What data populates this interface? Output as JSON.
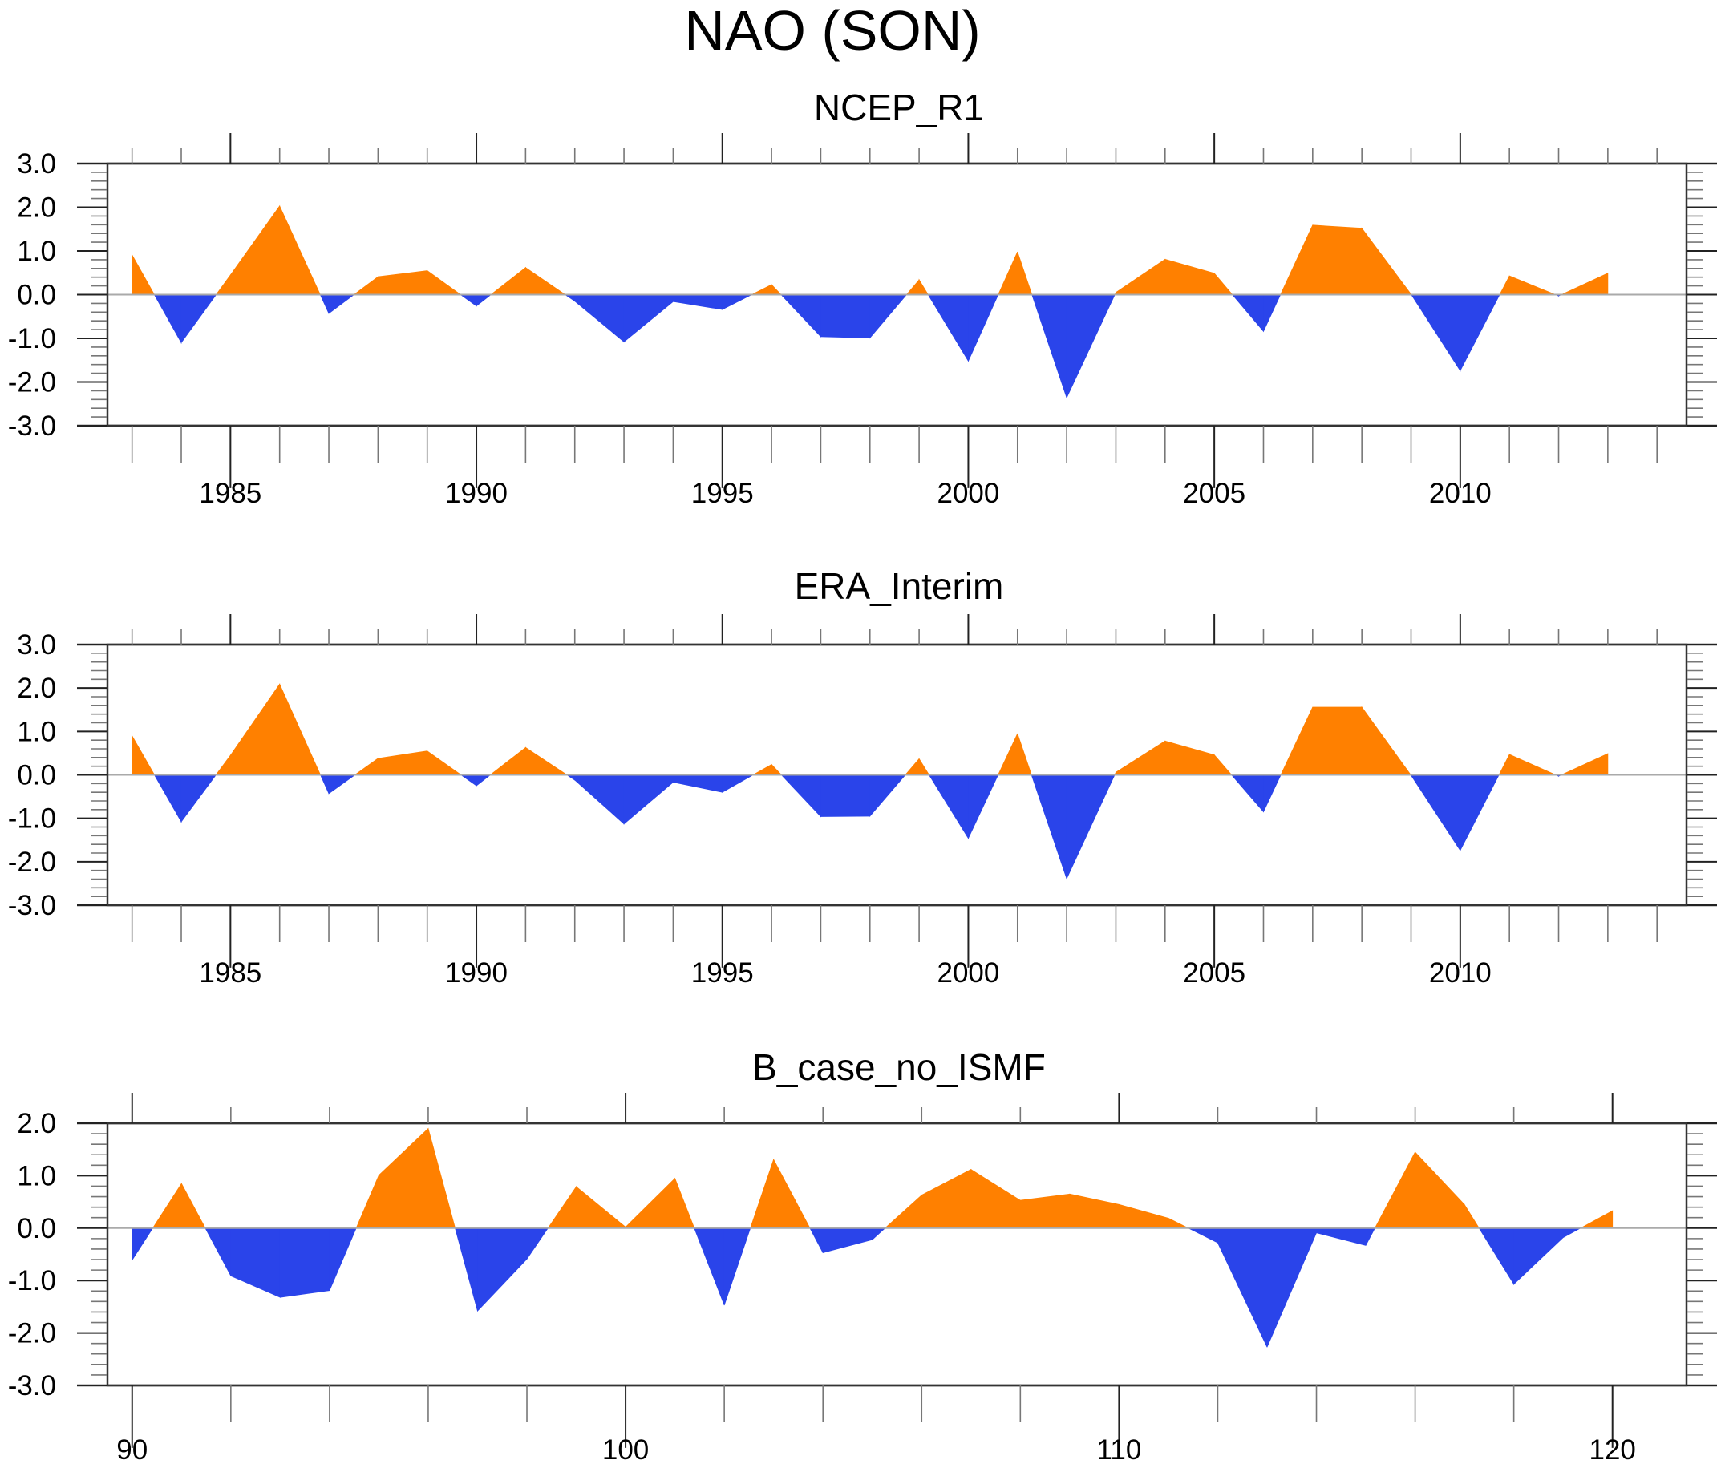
{
  "figure": {
    "title": "NAO (SON)",
    "colors": {
      "positive": "#ff8000",
      "negative": "#2a44ea",
      "zero_line": "#aaaaaa"
    }
  },
  "chart_data": [
    {
      "type": "area",
      "title": "NCEP_R1",
      "xlabel": "",
      "ylabel": "",
      "xlim": [
        1982.5,
        2014.6
      ],
      "ylim": [
        -3.0,
        3.0
      ],
      "x_major_ticks": [
        1985,
        1990,
        1995,
        2000,
        2005,
        2010
      ],
      "x_tick_labels": [
        "1985",
        "1990",
        "1995",
        "2000",
        "2005",
        "2010"
      ],
      "x_minor_step": 1,
      "y_ticks": [
        3.0,
        2.0,
        1.0,
        0.0,
        -1.0,
        -2.0,
        -3.0
      ],
      "y_tick_labels": [
        "3.0",
        "2.0",
        "1.0",
        "0.0",
        "-1.0",
        "-2.0",
        "-3.0"
      ],
      "y_minor_step": 0.2,
      "grid": false,
      "x": [
        1983,
        1984,
        1985,
        1986,
        1987,
        1988,
        1989,
        1990,
        1991,
        1992,
        1993,
        1994,
        1995,
        1996,
        1997,
        1998,
        1999,
        2000,
        2001,
        2002,
        2003,
        2004,
        2005,
        2006,
        2007,
        2008,
        2009,
        2010,
        2011,
        2012,
        2013
      ],
      "values": [
        0.91,
        -1.1,
        0.45,
        2.03,
        -0.43,
        0.41,
        0.55,
        -0.26,
        0.62,
        -0.15,
        -1.08,
        -0.16,
        -0.34,
        0.23,
        -0.96,
        -0.99,
        0.34,
        -1.52,
        0.98,
        -2.36,
        0.05,
        0.81,
        0.49,
        -0.84,
        1.59,
        1.52,
        0.01,
        -1.74,
        0.43,
        -0.03,
        0.49
      ]
    },
    {
      "type": "area",
      "title": "ERA_Interim",
      "xlabel": "",
      "ylabel": "",
      "xlim": [
        1982.5,
        2014.6
      ],
      "ylim": [
        -3.0,
        3.0
      ],
      "x_major_ticks": [
        1985,
        1990,
        1995,
        2000,
        2005,
        2010
      ],
      "x_tick_labels": [
        "1985",
        "1990",
        "1995",
        "2000",
        "2005",
        "2010"
      ],
      "x_minor_step": 1,
      "y_ticks": [
        3.0,
        2.0,
        1.0,
        0.0,
        -1.0,
        -2.0,
        -3.0
      ],
      "y_tick_labels": [
        "3.0",
        "2.0",
        "1.0",
        "0.0",
        "-1.0",
        "-2.0",
        "-3.0"
      ],
      "y_minor_step": 0.2,
      "grid": false,
      "x": [
        1983,
        1984,
        1985,
        1986,
        1987,
        1988,
        1989,
        1990,
        1991,
        1992,
        1993,
        1994,
        1995,
        1996,
        1997,
        1998,
        1999,
        2000,
        2001,
        2002,
        2003,
        2004,
        2005,
        2006,
        2007,
        2008,
        2009,
        2010,
        2011,
        2012,
        2013
      ],
      "values": [
        0.9,
        -1.08,
        0.45,
        2.09,
        -0.43,
        0.38,
        0.55,
        -0.25,
        0.63,
        -0.12,
        -1.13,
        -0.17,
        -0.4,
        0.24,
        -0.96,
        -0.95,
        0.37,
        -1.46,
        0.95,
        -2.39,
        0.06,
        0.78,
        0.46,
        -0.85,
        1.56,
        1.56,
        -0.01,
        -1.74,
        0.47,
        -0.03,
        0.49
      ]
    },
    {
      "type": "area",
      "title": "B_case_no_ISMF",
      "xlabel": "",
      "ylabel": "",
      "xlim": [
        89.5,
        121.5
      ],
      "ylim": [
        -3.0,
        2.0
      ],
      "x_major_ticks": [
        90,
        100,
        110,
        120
      ],
      "x_tick_labels": [
        "90",
        "100",
        "110",
        "120"
      ],
      "x_minor_step": 2,
      "y_ticks": [
        2.0,
        1.0,
        0.0,
        -1.0,
        -2.0,
        -3.0
      ],
      "y_tick_labels": [
        "2.0",
        "1.0",
        "0.0",
        "-1.0",
        "-2.0",
        "-3.0"
      ],
      "y_minor_step": 0.2,
      "grid": false,
      "x": [
        90,
        91,
        92,
        93,
        94,
        95,
        96,
        97,
        98,
        99,
        100,
        101,
        102,
        103,
        104,
        105,
        106,
        107,
        108,
        109,
        110,
        111,
        112,
        113,
        114,
        115,
        116,
        117,
        118,
        119,
        120
      ],
      "values": [
        -0.61,
        0.85,
        -0.91,
        -1.32,
        -1.19,
        1.01,
        1.9,
        -1.58,
        -0.59,
        0.79,
        0.02,
        0.95,
        -1.47,
        1.31,
        -0.47,
        -0.22,
        0.63,
        1.12,
        0.53,
        0.65,
        0.45,
        0.19,
        -0.28,
        -2.27,
        -0.09,
        -0.33,
        1.45,
        0.45,
        -1.07,
        -0.18,
        0.33
      ]
    }
  ]
}
